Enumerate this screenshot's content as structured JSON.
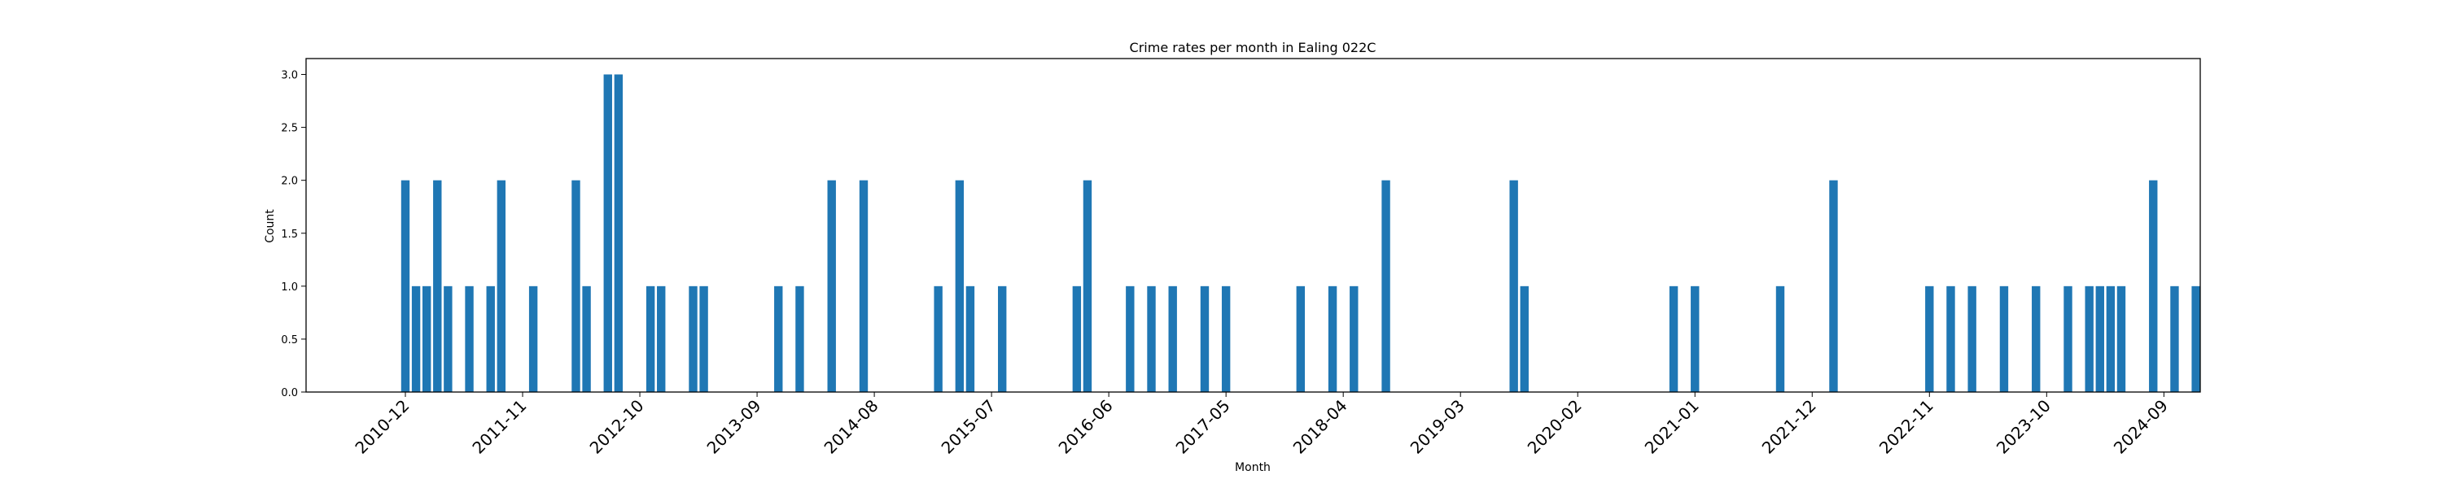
{
  "chart_data": {
    "type": "bar",
    "title": "Crime rates per month in Ealing 022C",
    "xlabel": "Month",
    "ylabel": "Count",
    "ylim": [
      0,
      3.15
    ],
    "yticks": [
      "0.0",
      "0.5",
      "1.0",
      "1.5",
      "2.0",
      "2.5",
      "3.0"
    ],
    "xticks": [
      "2010-12",
      "2011-11",
      "2012-10",
      "2013-09",
      "2014-08",
      "2015-07",
      "2016-06",
      "2017-05",
      "2018-04",
      "2019-03",
      "2020-02",
      "2021-01",
      "2021-12",
      "2022-11",
      "2023-10",
      "2024-09"
    ],
    "bar_color": "#1f77b4",
    "categories": [
      "2010-12",
      "2011-01",
      "2011-02",
      "2011-03",
      "2011-04",
      "2011-06",
      "2011-08",
      "2011-09",
      "2011-12",
      "2012-04",
      "2012-05",
      "2012-07",
      "2012-08",
      "2012-11",
      "2012-12",
      "2013-03",
      "2013-04",
      "2013-11",
      "2014-01",
      "2014-04",
      "2014-07",
      "2015-02",
      "2015-04",
      "2015-05",
      "2015-08",
      "2016-03",
      "2016-04",
      "2016-08",
      "2016-10",
      "2016-12",
      "2017-03",
      "2017-05",
      "2017-12",
      "2018-03",
      "2018-05",
      "2018-08",
      "2019-08",
      "2019-09",
      "2020-11",
      "2021-01",
      "2021-09",
      "2022-02",
      "2022-11",
      "2023-01",
      "2023-03",
      "2023-06",
      "2023-09",
      "2023-12",
      "2024-02",
      "2024-03",
      "2024-04",
      "2024-05",
      "2024-08",
      "2024-10",
      "2024-12"
    ],
    "values": [
      2,
      1,
      1,
      2,
      1,
      1,
      1,
      2,
      1,
      2,
      1,
      3,
      3,
      1,
      1,
      1,
      1,
      1,
      1,
      2,
      2,
      1,
      2,
      1,
      1,
      1,
      2,
      1,
      1,
      1,
      1,
      1,
      1,
      1,
      1,
      2,
      2,
      1,
      1,
      1,
      1,
      2,
      1,
      1,
      1,
      1,
      1,
      1,
      1,
      1,
      1,
      1,
      2,
      1,
      1
    ]
  }
}
